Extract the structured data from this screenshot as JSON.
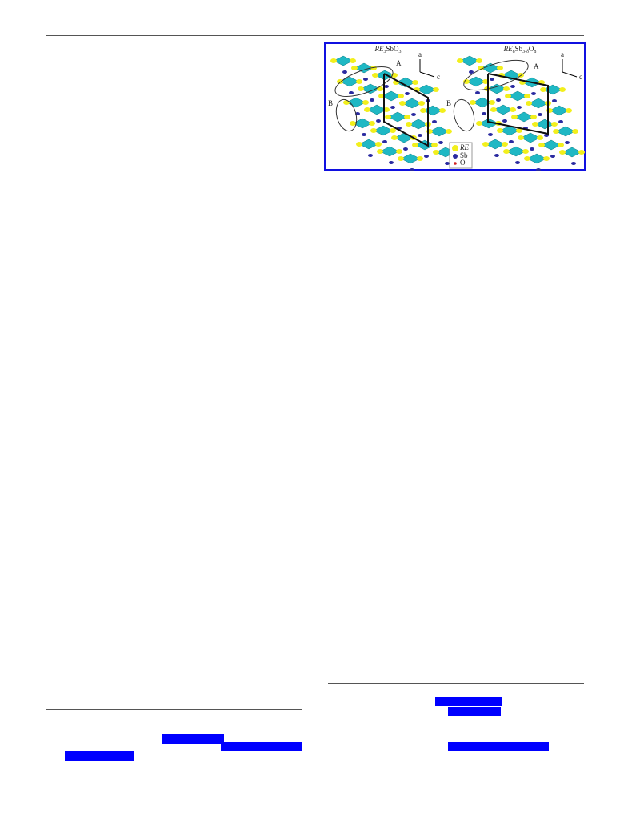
{
  "figure": {
    "panels": [
      {
        "title_parts": [
          "RE",
          "3",
          "SbO",
          "3"
        ],
        "labels": [
          "A",
          "B"
        ],
        "axes": [
          "a",
          "c"
        ]
      },
      {
        "title_parts": [
          "RE",
          "8",
          "Sb",
          "3-δ",
          "O",
          "8"
        ],
        "labels": [
          "A",
          "B"
        ],
        "axes": [
          "a",
          "c"
        ]
      }
    ],
    "legend": [
      "RE",
      "Sb",
      "O"
    ]
  }
}
